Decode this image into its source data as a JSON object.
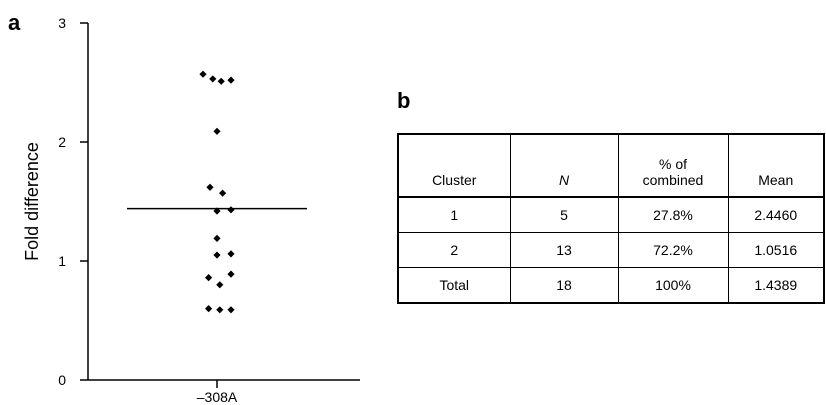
{
  "panel_a_letter": "a",
  "panel_b_letter": "b",
  "chart_data": {
    "type": "scatter",
    "title": "",
    "xlabel": "",
    "ylabel": "Fold difference",
    "categories": [
      "–308A"
    ],
    "ylim": [
      0,
      3
    ],
    "yticks": [
      "0",
      "1",
      "2",
      "3"
    ],
    "grid": false,
    "mean_line": 1.44,
    "series": [
      {
        "values": [
          {
            "x": -0.1,
            "y": 2.57
          },
          {
            "x": -0.03,
            "y": 2.53
          },
          {
            "x": 0.03,
            "y": 2.51
          },
          {
            "x": 0.1,
            "y": 2.52
          },
          {
            "x": 0.0,
            "y": 2.09
          },
          {
            "x": -0.05,
            "y": 1.62
          },
          {
            "x": 0.04,
            "y": 1.57
          },
          {
            "x": 0.0,
            "y": 1.42
          },
          {
            "x": 0.1,
            "y": 1.43
          },
          {
            "x": 0.0,
            "y": 1.19
          },
          {
            "x": 0.0,
            "y": 1.05
          },
          {
            "x": 0.1,
            "y": 1.06
          },
          {
            "x": -0.06,
            "y": 0.86
          },
          {
            "x": 0.1,
            "y": 0.89
          },
          {
            "x": 0.02,
            "y": 0.8
          },
          {
            "x": -0.06,
            "y": 0.6
          },
          {
            "x": 0.02,
            "y": 0.59
          },
          {
            "x": 0.1,
            "y": 0.59
          }
        ]
      }
    ]
  },
  "table": {
    "headers": [
      "Cluster",
      "N",
      "% of combined",
      "Mean"
    ],
    "rows": [
      [
        "1",
        "5",
        "27.8%",
        "2.4460"
      ],
      [
        "2",
        "13",
        "72.2%",
        "1.0516"
      ],
      [
        "Total",
        "18",
        "100%",
        "1.4389"
      ]
    ]
  }
}
